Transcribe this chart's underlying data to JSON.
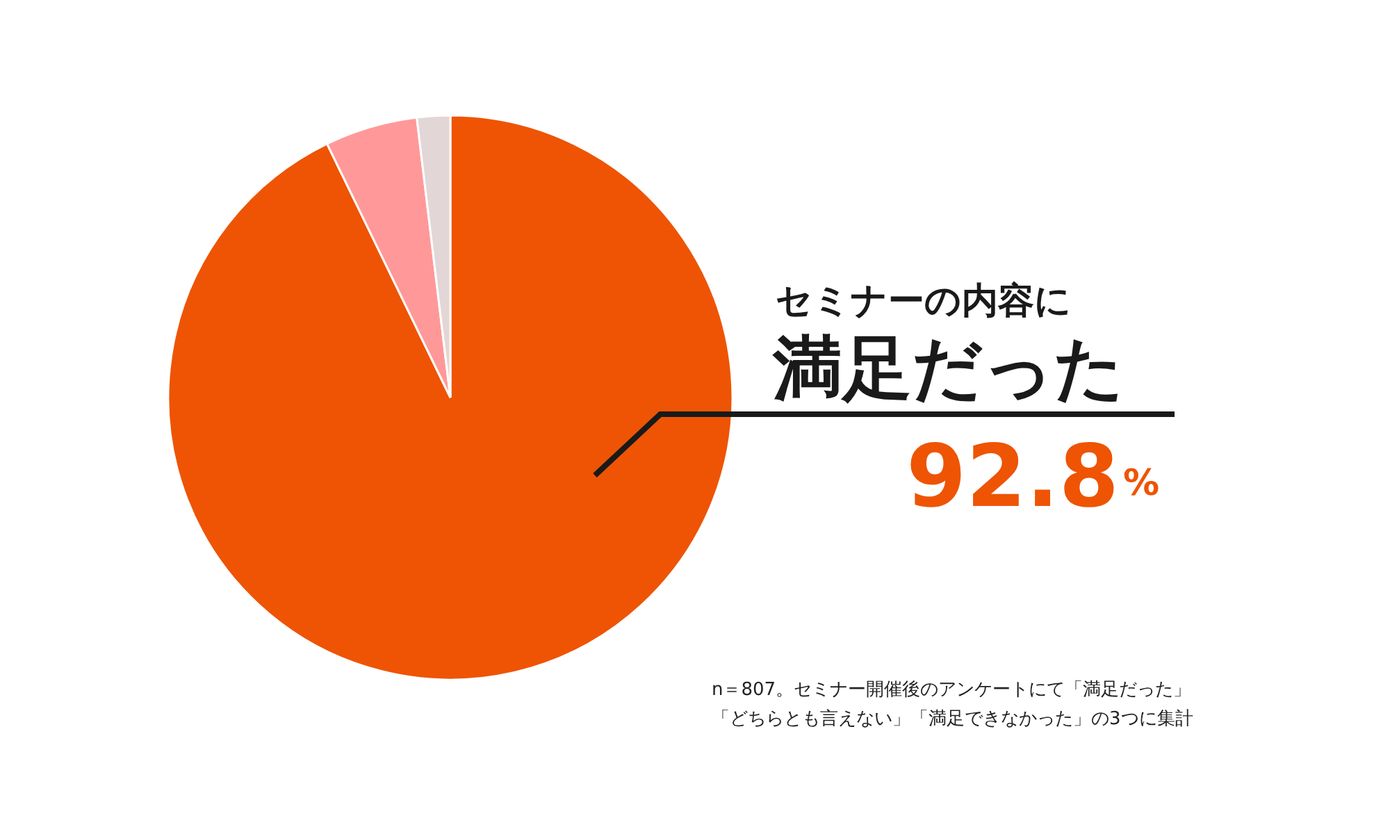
{
  "chart_data": {
    "type": "pie",
    "categories": [
      "セミナーの内容に満足だった",
      null,
      null
    ],
    "values": [
      92.8,
      5.3,
      1.9
    ],
    "colors": [
      "#ee5404",
      "#ff9999",
      "#e2d6d6"
    ],
    "value_labels": [
      "92.8%",
      null,
      null
    ],
    "annotations": [
      "n＝807。セミナー開催後のアンケートにて「満足だった」",
      "「どちらとも言えない」「満足できなかった」の3つに集計"
    ]
  }
}
